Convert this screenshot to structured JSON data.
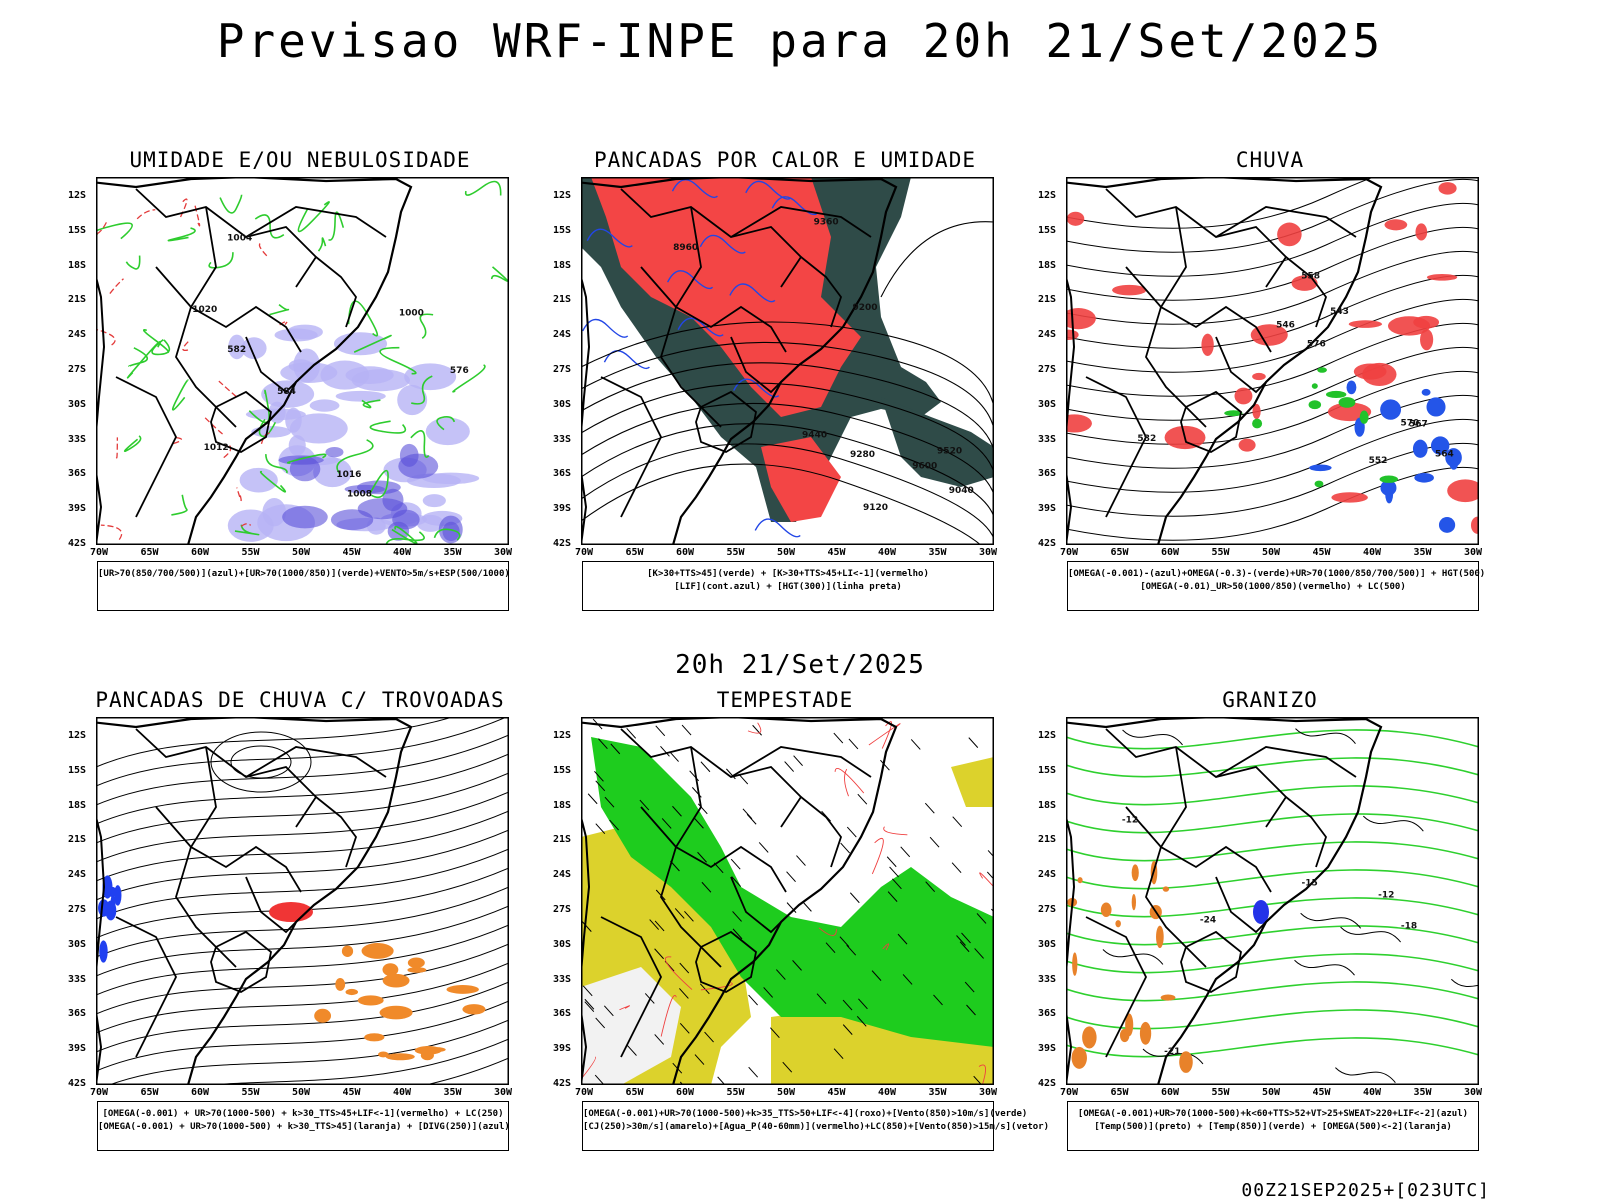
{
  "main_title": "Previsao WRF-INPE  para 20h 21/Set/2025",
  "mid_title": "20h 21/Set/2025",
  "footer": "00Z21SEP2025+[023UTC]",
  "axis": {
    "lat_labels": [
      "12S",
      "15S",
      "18S",
      "21S",
      "24S",
      "27S",
      "30S",
      "33S",
      "36S",
      "39S",
      "42S"
    ],
    "lon_labels": [
      "70W",
      "65W",
      "60W",
      "55W",
      "50W",
      "45W",
      "40W",
      "35W",
      "30W"
    ]
  },
  "panels": [
    {
      "title": "UMIDADE E/OU NEBULOSIDADE",
      "caption": [
        "[UR>70(850/700/500)](azul)+[UR>70(1000/850)](verde)+VENTO>5m/s+ESP(500/1000)"
      ],
      "labels": [
        "1008",
        "1004",
        "1012",
        "1020",
        "1000",
        "1016",
        "576",
        "582",
        "584"
      ]
    },
    {
      "title": "PANCADAS POR CALOR E UMIDADE",
      "caption": [
        "[K>30+TTS>45](verde) + [K>30+TTS>45+LI<-1](vermelho)",
        "[LIF](cont.azul) + [HGT(300)](linha preta)"
      ],
      "labels": [
        "9600",
        "9520",
        "9440",
        "9360",
        "9280",
        "9200",
        "9120",
        "9040",
        "8960"
      ]
    },
    {
      "title": "CHUVA",
      "caption": [
        "[OMEGA(-0.001)-(azul)+OMEGA(-0.3)-(verde)+UR>70(1000/850/700/500)] + HGT(500)",
        "[OMEGA(-0.01)_UR>50(1000/850)(vermelho) + LC(500)"
      ],
      "labels": [
        "582",
        "576",
        "570",
        "564",
        "558",
        "552",
        "546",
        "543",
        "567"
      ]
    },
    {
      "title": "PANCADAS DE CHUVA C/ TROVOADAS",
      "caption": [
        "[OMEGA(-0.001) + UR>70(1000-500) + k>30_TTS>45+LIF<-1](vermelho) + LC(250)",
        "[OMEGA(-0.001) + UR>70(1000-500) + k>30_TTS>45](laranja) + [DIVG(250)](azul)"
      ],
      "labels": []
    },
    {
      "title": "TEMPESTADE",
      "caption": [
        "[OMEGA(-0.001)+UR>70(1000-500)+k>35_TTS>50+LIF<-4](roxo)+[Vento(850)>10m/s](verde)",
        "[CJ(250)>30m/s](amarelo)+[Agua_P(40-60mm)](vermelho)+LC(850)+[Vento(850)>15m/s](vetor)"
      ],
      "labels": []
    },
    {
      "title": "GRANIZO",
      "caption": [
        "[OMEGA(-0.001)+UR>70(1000-500)+k<60+TTS>52+VT>25+SWEAT>220+LIF<-2](azul)",
        "[Temp(500)](preto) + [Temp(850)](verde) + [OMEGA(500)<-2](laranja)"
      ],
      "labels": [
        "-12",
        "-15",
        "-18",
        "-21",
        "-24",
        "-12"
      ]
    }
  ]
}
